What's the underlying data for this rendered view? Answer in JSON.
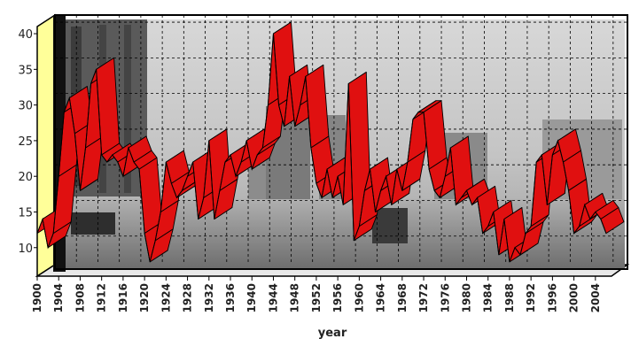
{
  "chart_data": {
    "type": "line",
    "title": "",
    "xlabel": "year",
    "ylabel": "",
    "xlim": [
      1900,
      2007
    ],
    "ylim": [
      6,
      41
    ],
    "y_ticks": [
      10,
      15,
      20,
      25,
      30,
      35,
      40
    ],
    "x_ticks": [
      1900,
      1904,
      1908,
      1912,
      1916,
      1920,
      1924,
      1928,
      1932,
      1936,
      1940,
      1944,
      1948,
      1952,
      1956,
      1960,
      1964,
      1968,
      1972,
      1976,
      1980,
      1984,
      1988,
      1992,
      1996,
      2000,
      2004
    ],
    "grid": true,
    "line_color": "#e01010",
    "background": "grayscale photo of city construction site",
    "series": [
      {
        "x": [
          1900,
          1901,
          1902,
          1903,
          1904,
          1905,
          1906,
          1907,
          1908,
          1909,
          1910,
          1911,
          1912,
          1913,
          1914,
          1915,
          1916,
          1917,
          1918,
          1919,
          1920,
          1921,
          1922,
          1923,
          1924,
          1925,
          1926,
          1927,
          1928,
          1929,
          1930,
          1931,
          1932,
          1933,
          1934,
          1935,
          1936,
          1937,
          1938,
          1939,
          1940,
          1941,
          1942,
          1943,
          1944,
          1945,
          1946,
          1947,
          1948,
          1949,
          1950,
          1951,
          1952,
          1953,
          1954,
          1955,
          1956,
          1957,
          1958,
          1959,
          1960,
          1961,
          1962,
          1963,
          1964,
          1965,
          1966,
          1967,
          1968,
          1969,
          1970,
          1971,
          1972,
          1973,
          1974,
          1975,
          1976,
          1977,
          1978,
          1979,
          1980,
          1981,
          1982,
          1983,
          1984,
          1985,
          1986,
          1987,
          1988,
          1989,
          1990,
          1991,
          1992,
          1993,
          1994,
          1995,
          1996,
          1997,
          1998,
          1999,
          2000,
          2001,
          2002,
          2003,
          2004,
          2005,
          2006
        ],
        "values": [
          12,
          14,
          10,
          12,
          20,
          29,
          31,
          26,
          18,
          24,
          33,
          35,
          23,
          22,
          23,
          22,
          20,
          24,
          22,
          21,
          12,
          8,
          11,
          15,
          22,
          19,
          17,
          18,
          20,
          22,
          14,
          17,
          25,
          14,
          18,
          22,
          23,
          20,
          22,
          25,
          21,
          23,
          24,
          30,
          40,
          30,
          27,
          34,
          27,
          30,
          34,
          24,
          19,
          17,
          21,
          17,
          20,
          16,
          33,
          11,
          13,
          18,
          21,
          15,
          18,
          20,
          16,
          21,
          18,
          22,
          28,
          29,
          29,
          21,
          18,
          17,
          20,
          24,
          16,
          17,
          18,
          16,
          17,
          12,
          13,
          15,
          9,
          14,
          8,
          10,
          9,
          12,
          13,
          22,
          23,
          16,
          23,
          25,
          22,
          18,
          12,
          13,
          16,
          14,
          15,
          14,
          12
        ]
      }
    ]
  }
}
